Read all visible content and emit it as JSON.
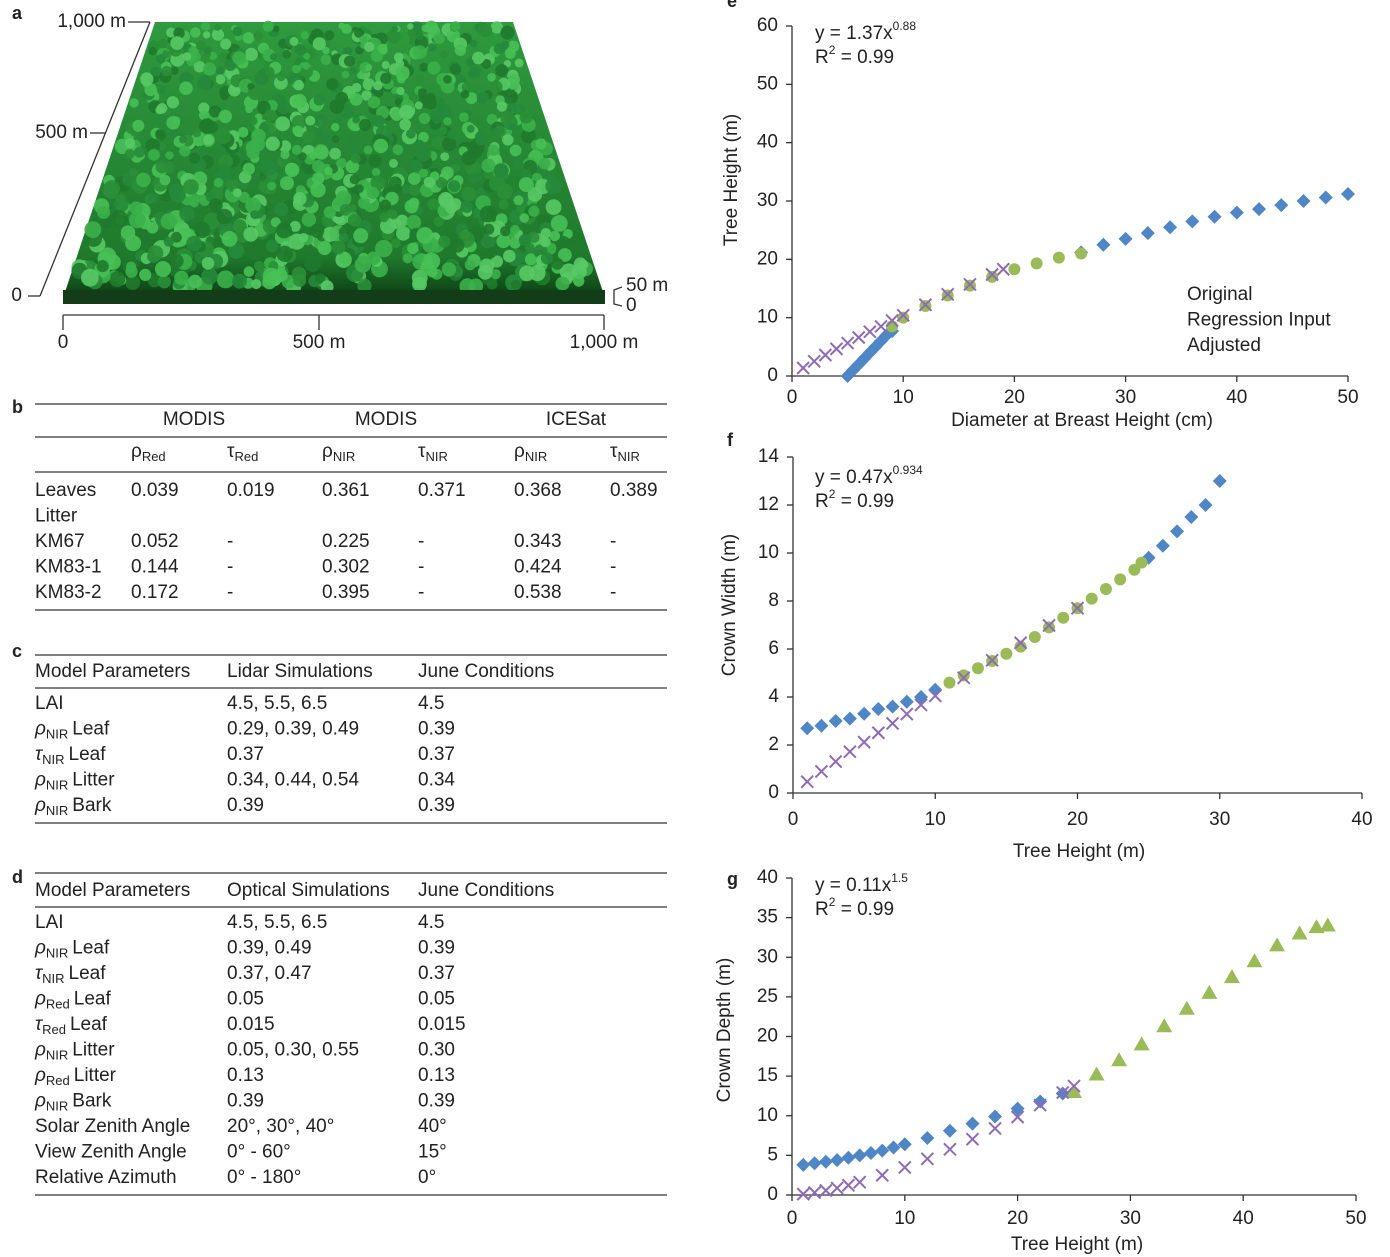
{
  "panel_a": {
    "label": "a",
    "height_labels": [
      "1,000 m",
      "500 m",
      "0"
    ],
    "depth_labels": [
      "50 m",
      "0"
    ],
    "x_labels": [
      "0",
      "500 m",
      "1,000 m"
    ]
  },
  "tables": {
    "b": {
      "label": "b",
      "groups": [
        "MODIS",
        "MODIS",
        "ICESat"
      ],
      "subheaders": [
        {
          "symbol": "ρ",
          "sub": "Red"
        },
        {
          "symbol": "τ",
          "sub": "Red"
        },
        {
          "symbol": "ρ",
          "sub": "NIR"
        },
        {
          "symbol": "τ",
          "sub": "NIR"
        },
        {
          "symbol": "ρ",
          "sub": "NIR"
        },
        {
          "symbol": "τ",
          "sub": "NIR"
        }
      ],
      "rows": [
        [
          "Leaves",
          "0.039",
          "0.019",
          "0.361",
          "0.371",
          "0.368",
          "0.389"
        ],
        [
          "Litter"
        ],
        [
          "KM67",
          "0.052",
          "-",
          "0.225",
          "-",
          "0.343",
          "-"
        ],
        [
          "KM83-1",
          "0.144",
          "-",
          "0.302",
          "-",
          "0.424",
          "-"
        ],
        [
          "KM83-2",
          "0.172",
          "-",
          "0.395",
          "-",
          "0.538",
          "-"
        ]
      ]
    },
    "c": {
      "label": "c",
      "header": [
        "Model Parameters",
        "Lidar Simulations",
        "June Conditions"
      ],
      "rows": [
        [
          "LAI",
          "4.5, 5.5, 6.5",
          "4.5"
        ],
        [
          {
            "symbol": "ρ",
            "sub": "NIR",
            "text": "Leaf"
          },
          "0.29, 0.39, 0.49",
          "0.39"
        ],
        [
          {
            "symbol": "τ",
            "sub": "NIR",
            "text": "Leaf"
          },
          "0.37",
          "0.37"
        ],
        [
          {
            "symbol": "ρ",
            "sub": "NIR",
            "text": "Litter"
          },
          "0.34, 0.44, 0.54",
          "0.34"
        ],
        [
          {
            "symbol": "ρ",
            "sub": "NIR",
            "text": "Bark"
          },
          "0.39",
          "0.39"
        ]
      ]
    },
    "d": {
      "label": "d",
      "header": [
        "Model Parameters",
        "Optical Simulations",
        "June Conditions"
      ],
      "rows": [
        [
          "LAI",
          "4.5, 5.5, 6.5",
          "4.5"
        ],
        [
          {
            "symbol": "ρ",
            "sub": "NIR",
            "text": "Leaf"
          },
          "0.39, 0.49",
          "0.39"
        ],
        [
          {
            "symbol": "τ",
            "sub": "NIR",
            "text": "Leaf"
          },
          "0.37, 0.47",
          "0.37"
        ],
        [
          {
            "symbol": "ρ",
            "sub": "Red",
            "text": "Leaf"
          },
          "0.05",
          "0.05"
        ],
        [
          {
            "symbol": "τ",
            "sub": "Red",
            "text": "Leaf"
          },
          "0.015",
          "0.015"
        ],
        [
          {
            "symbol": "ρ",
            "sub": "NIR",
            "text": "Litter"
          },
          "0.05, 0.30, 0.55",
          "0.30"
        ],
        [
          {
            "symbol": "ρ",
            "sub": "Red",
            "text": "Litter"
          },
          "0.13",
          "0.13"
        ],
        [
          {
            "symbol": "ρ",
            "sub": "NIR",
            "text": "Bark"
          },
          "0.39",
          "0.39"
        ],
        [
          "Solar Zenith Angle",
          "20°, 30°, 40°",
          "40°"
        ],
        [
          "View Zenith Angle",
          "0° - 60°",
          "15°"
        ],
        [
          "Relative Azimuth",
          "0° - 180°",
          "0°"
        ]
      ]
    }
  },
  "chart_data": [
    {
      "type": "scatter",
      "label": "e",
      "xlabel": "Diameter at Breast Height (cm)",
      "ylabel": "Tree Height (m)",
      "fit": {
        "equation": "y = 1.37x",
        "exponent": "0.88",
        "r2_symbol": "R",
        "r2_exponent": "2",
        "r2_value": " = 0.99"
      },
      "xlim": [
        0,
        50
      ],
      "ylim": [
        0,
        60
      ],
      "xticks": [
        0,
        10,
        20,
        30,
        40,
        50
      ],
      "yticks": [
        0,
        10,
        20,
        30,
        40,
        50,
        60
      ],
      "grid": false,
      "legend": "right",
      "series": [
        {
          "name": "Original",
          "color": "#4f86c6",
          "marker": "diamond",
          "x": [
            5,
            5.5,
            6,
            6.5,
            7,
            7.5,
            8,
            8.5,
            9,
            26,
            28,
            30,
            32,
            34,
            36,
            38,
            40,
            42,
            44,
            46,
            48,
            50
          ],
          "values": [
            0,
            1,
            2,
            3,
            4,
            5,
            6,
            7,
            7.7,
            21.2,
            22.5,
            23.5,
            24.5,
            25.5,
            26.5,
            27.3,
            28,
            28.6,
            29.3,
            30,
            30.6,
            31.2
          ]
        },
        {
          "name": "Regression Input",
          "color": "#9bbb59",
          "marker": "circle",
          "x": [
            9,
            10,
            12,
            14,
            16,
            18,
            20,
            22,
            24,
            26
          ],
          "values": [
            8.5,
            10,
            12,
            13.8,
            15.5,
            17,
            18.3,
            19.3,
            20.3,
            21
          ]
        },
        {
          "name": "Adjusted",
          "color": "#8e6bb5",
          "marker": "cross",
          "x": [
            1,
            2,
            3,
            4,
            5,
            6,
            7,
            8,
            9,
            10,
            12,
            14,
            16,
            18,
            19
          ],
          "values": [
            1.37,
            2.52,
            3.6,
            4.65,
            5.65,
            6.6,
            7.6,
            8.5,
            9.5,
            10.4,
            12.2,
            14,
            15.7,
            17.4,
            18.3
          ]
        }
      ]
    },
    {
      "type": "scatter",
      "label": "f",
      "xlabel": "Tree Height (m)",
      "ylabel": "Crown Width (m)",
      "fit": {
        "equation": "y = 0.47x",
        "exponent": "0.934",
        "r2_symbol": "R",
        "r2_exponent": "2",
        "r2_value": " = 0.99"
      },
      "xlim": [
        0,
        40
      ],
      "ylim": [
        0,
        14
      ],
      "xticks": [
        0,
        10,
        20,
        30,
        40
      ],
      "yticks": [
        0,
        2,
        4,
        6,
        8,
        10,
        12,
        14
      ],
      "grid": false,
      "series": [
        {
          "color": "#4f86c6",
          "marker": "diamond",
          "x": [
            1,
            2,
            3,
            4,
            5,
            6,
            7,
            8,
            9,
            10,
            25,
            26,
            27,
            28,
            29,
            30
          ],
          "values": [
            2.7,
            2.8,
            3,
            3.1,
            3.3,
            3.5,
            3.6,
            3.8,
            4,
            4.3,
            9.8,
            10.3,
            10.9,
            11.5,
            12,
            13
          ]
        },
        {
          "color": "#9bbb59",
          "marker": "circle",
          "x": [
            11,
            12,
            13,
            14,
            15,
            16,
            17,
            18,
            19,
            20,
            21,
            22,
            23,
            24,
            24.5
          ],
          "values": [
            4.6,
            4.9,
            5.2,
            5.5,
            5.8,
            6.1,
            6.5,
            6.9,
            7.3,
            7.7,
            8.1,
            8.5,
            8.9,
            9.3,
            9.6
          ]
        },
        {
          "color": "#8e6bb5",
          "marker": "cross",
          "x": [
            1,
            2,
            3,
            4,
            5,
            6,
            7,
            8,
            9,
            10,
            12,
            14,
            16,
            18,
            20
          ],
          "values": [
            0.47,
            0.9,
            1.31,
            1.72,
            2.12,
            2.51,
            2.9,
            3.29,
            3.67,
            4.05,
            4.8,
            5.53,
            6.26,
            6.98,
            7.7
          ]
        }
      ]
    },
    {
      "type": "scatter",
      "label": "g",
      "xlabel": "Tree Height (m)",
      "ylabel": "Crown Depth (m)",
      "fit": {
        "equation": "y = 0.11x",
        "exponent": "1.5",
        "r2_symbol": "R",
        "r2_exponent": "2",
        "r2_value": " = 0.99"
      },
      "xlim": [
        0,
        50
      ],
      "ylim": [
        0,
        40
      ],
      "xticks": [
        0,
        10,
        20,
        30,
        40,
        50
      ],
      "yticks": [
        0,
        5,
        10,
        15,
        20,
        25,
        30,
        35,
        40
      ],
      "grid": false,
      "series": [
        {
          "color": "#4f86c6",
          "marker": "diamond",
          "x": [
            1,
            2,
            3,
            4,
            5,
            6,
            7,
            8,
            9,
            10,
            12,
            14,
            16,
            18,
            20,
            22,
            24
          ],
          "values": [
            3.8,
            4,
            4.2,
            4.4,
            4.7,
            5,
            5.3,
            5.6,
            6,
            6.4,
            7.2,
            8.1,
            9,
            9.9,
            10.9,
            11.8,
            12.8
          ]
        },
        {
          "color": "#9bbb59",
          "marker": "triangle",
          "x": [
            25,
            27,
            29,
            31,
            33,
            35,
            37,
            39,
            41,
            43,
            45,
            46.5,
            47.5
          ],
          "values": [
            13,
            15.2,
            17,
            19,
            21.3,
            23.5,
            25.5,
            27.5,
            29.5,
            31.5,
            33,
            33.8,
            34
          ]
        },
        {
          "color": "#8e6bb5",
          "marker": "cross",
          "x": [
            1,
            2,
            3,
            4,
            5,
            6,
            8,
            10,
            12,
            14,
            16,
            18,
            20,
            22,
            24,
            25
          ],
          "values": [
            0.11,
            0.31,
            0.57,
            0.88,
            1.23,
            1.62,
            2.49,
            3.48,
            4.57,
            5.76,
            7.04,
            8.4,
            9.84,
            11.35,
            12.93,
            13.75
          ]
        }
      ]
    }
  ]
}
